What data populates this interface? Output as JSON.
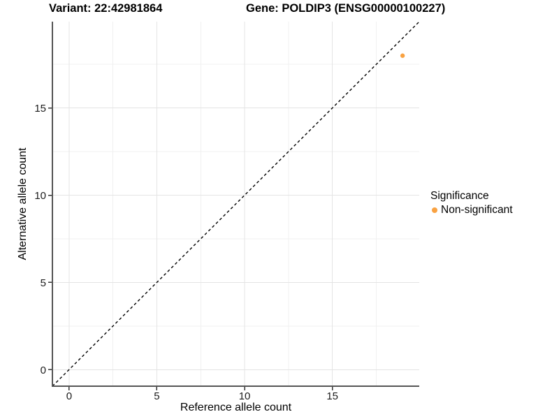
{
  "chart_data": {
    "type": "scatter",
    "titles": {
      "variant": "Variant: 22:42981864",
      "gene": "Gene: POLDIP3 (ENSG00000100227)"
    },
    "xlabel": "Reference allele count",
    "ylabel": "Alternative allele count",
    "xlim": [
      -0.95,
      19.95
    ],
    "ylim": [
      -0.95,
      19.95
    ],
    "x_breaks": [
      0,
      5,
      10,
      15
    ],
    "y_breaks": [
      0,
      5,
      10,
      15
    ],
    "x_minor_breaks": [
      2.5,
      7.5,
      12.5,
      17.5
    ],
    "y_minor_breaks": [
      2.5,
      7.5,
      12.5,
      17.5
    ],
    "grid": "major+minor",
    "identity_line": {
      "slope": 1,
      "intercept": 0,
      "style": "dashed",
      "color": "#000000"
    },
    "series": [
      {
        "name": "Non-significant",
        "color": "#F9A242",
        "points": [
          {
            "x": 19,
            "y": 18
          }
        ]
      }
    ],
    "legend": {
      "title": "Significance",
      "position": "right",
      "items": [
        {
          "label": "Non-significant",
          "color": "#F9A242",
          "marker": "circle"
        }
      ]
    },
    "colors": {
      "grid_major": "#E4E4E4",
      "grid_minor": "#F0F0F0",
      "axis_line": "#555555",
      "tick_mark": "#333333",
      "tick_label": "#1A1A1A",
      "text": "#000000"
    }
  }
}
